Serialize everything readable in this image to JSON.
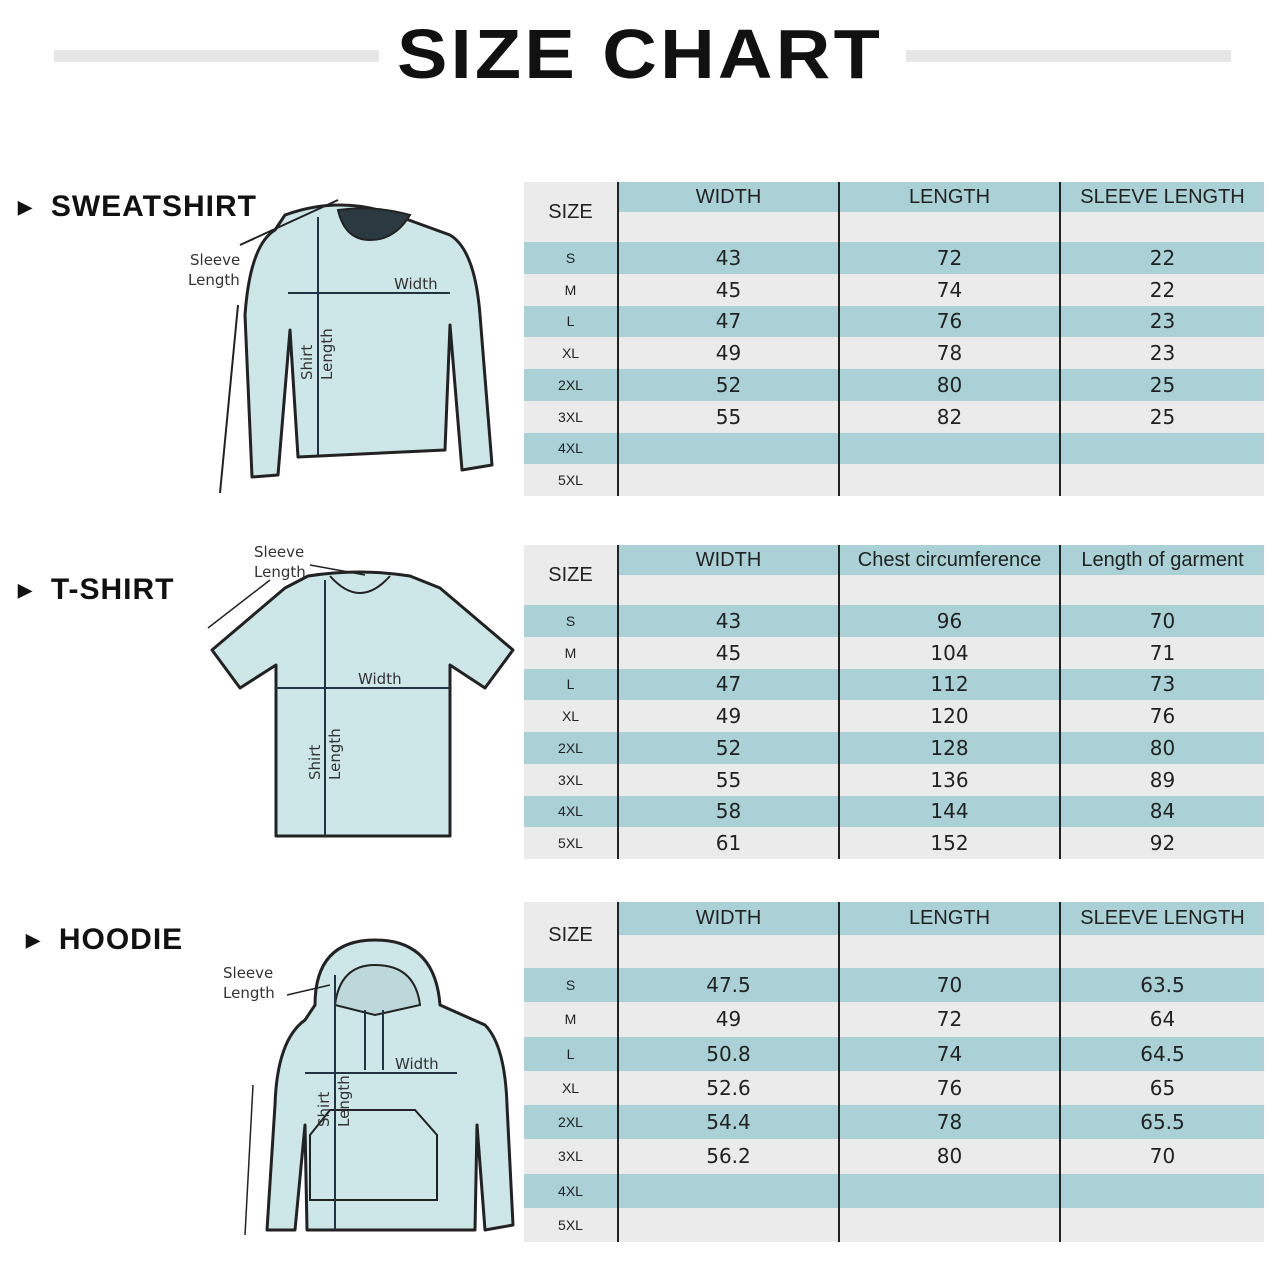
{
  "title": "SIZE CHART",
  "colors": {
    "stripe": "#a9d1d6",
    "row_light": "#ebebeb",
    "garment_fill": "#cde6e8"
  },
  "sections": [
    {
      "name": "SWEATSHIRT",
      "garment_labels": {
        "sleeve": [
          "Sleeve",
          "Length"
        ],
        "width": "Width",
        "length": [
          "Shirt",
          "Length"
        ]
      },
      "columns": [
        "SIZE",
        "WIDTH",
        "LENGTH",
        "SLEEVE LENGTH"
      ],
      "rows": [
        [
          "S",
          "43",
          "72",
          "22"
        ],
        [
          "M",
          "45",
          "74",
          "22"
        ],
        [
          "L",
          "47",
          "76",
          "23"
        ],
        [
          "XL",
          "49",
          "78",
          "23"
        ],
        [
          "2XL",
          "52",
          "80",
          "25"
        ],
        [
          "3XL",
          "55",
          "82",
          "25"
        ],
        [
          "4XL",
          "",
          "",
          ""
        ],
        [
          "5XL",
          "",
          "",
          ""
        ]
      ]
    },
    {
      "name": "T-SHIRT",
      "garment_labels": {
        "sleeve": [
          "Sleeve",
          "Length"
        ],
        "width": "Width",
        "length": [
          "Shirt",
          "Length"
        ]
      },
      "columns": [
        "SIZE",
        "WIDTH",
        "Chest circumference",
        "Length of garment"
      ],
      "rows": [
        [
          "S",
          "43",
          "96",
          "70"
        ],
        [
          "M",
          "45",
          "104",
          "71"
        ],
        [
          "L",
          "47",
          "112",
          "73"
        ],
        [
          "XL",
          "49",
          "120",
          "76"
        ],
        [
          "2XL",
          "52",
          "128",
          "80"
        ],
        [
          "3XL",
          "55",
          "136",
          "89"
        ],
        [
          "4XL",
          "58",
          "144",
          "84"
        ],
        [
          "5XL",
          "61",
          "152",
          "92"
        ]
      ]
    },
    {
      "name": "HOODIE",
      "garment_labels": {
        "sleeve": [
          "Sleeve",
          "Length"
        ],
        "width": "Width",
        "length": [
          "Shirt",
          "Length"
        ]
      },
      "columns": [
        "SIZE",
        "WIDTH",
        "LENGTH",
        "SLEEVE LENGTH"
      ],
      "rows": [
        [
          "S",
          "47.5",
          "70",
          "63.5"
        ],
        [
          "M",
          "49",
          "72",
          "64"
        ],
        [
          "L",
          "50.8",
          "74",
          "64.5"
        ],
        [
          "XL",
          "52.6",
          "76",
          "65"
        ],
        [
          "2XL",
          "54.4",
          "78",
          "65.5"
        ],
        [
          "3XL",
          "56.2",
          "80",
          "70"
        ],
        [
          "4XL",
          "",
          "",
          ""
        ],
        [
          "5XL",
          "",
          "",
          ""
        ]
      ]
    }
  ]
}
